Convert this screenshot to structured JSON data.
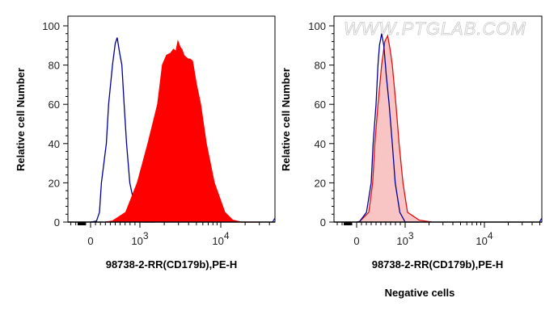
{
  "watermark": "WWW.PTGLAB.COM",
  "chart_data": [
    {
      "type": "area",
      "xscale": "biexponential",
      "xlabel": "98738-2-RR(CD179b),PE-H",
      "ylabel": "Relative cell Number",
      "subtitle": "",
      "ylim": [
        0,
        100
      ],
      "yticks": [
        "0",
        "20",
        "40",
        "60",
        "80",
        "100"
      ],
      "xticks": [
        {
          "value": 0,
          "label": "0"
        },
        {
          "value": 1000,
          "label": "10",
          "exp": "3"
        },
        {
          "value": 10000,
          "label": "10",
          "exp": "4"
        }
      ],
      "series": [
        {
          "color": "#000099",
          "fill": "none",
          "points": [
            [
              0,
              0
            ],
            [
              120,
              0.5
            ],
            [
              180,
              5
            ],
            [
              220,
              20
            ],
            [
              320,
              40
            ],
            [
              365,
              60
            ],
            [
              445,
              80
            ],
            [
              500,
              91
            ],
            [
              540,
              94
            ],
            [
              590,
              86
            ],
            [
              635,
              80
            ],
            [
              680,
              60
            ],
            [
              730,
              40
            ],
            [
              795,
              20
            ],
            [
              920,
              5
            ],
            [
              1000,
              1.5
            ],
            [
              1120,
              0
            ],
            [
              1500,
              0
            ]
          ]
        },
        {
          "color": "#ff0000",
          "fill": "#ff0000",
          "points": [
            [
              300,
              0
            ],
            [
              445,
              0.5
            ],
            [
              715,
              5
            ],
            [
              950,
              20
            ],
            [
              1260,
              40
            ],
            [
              1660,
              60
            ],
            [
              1900,
              80
            ],
            [
              2140,
              85
            ],
            [
              2400,
              86
            ],
            [
              2600,
              88
            ],
            [
              2800,
              87
            ],
            [
              2950,
              92
            ],
            [
              3150,
              89
            ],
            [
              3300,
              88
            ],
            [
              3500,
              85
            ],
            [
              3700,
              84
            ],
            [
              3950,
              83
            ],
            [
              4200,
              83
            ],
            [
              4470,
              82
            ],
            [
              5000,
              70
            ],
            [
              5620,
              60
            ],
            [
              6600,
              40
            ],
            [
              8300,
              20
            ],
            [
              11200,
              5
            ],
            [
              14000,
              1
            ],
            [
              17800,
              0
            ],
            [
              30000,
              0
            ]
          ]
        }
      ]
    },
    {
      "type": "area",
      "xscale": "biexponential",
      "xlabel": "98738-2-RR(CD179b),PE-H",
      "ylabel": "Relative cell Number",
      "subtitle": "Negative cells",
      "ylim": [
        0,
        100
      ],
      "yticks": [
        "0",
        "20",
        "40",
        "60",
        "80",
        "100"
      ],
      "xticks": [
        {
          "value": 0,
          "label": "0"
        },
        {
          "value": 1000,
          "label": "10",
          "exp": "3"
        },
        {
          "value": 10000,
          "label": "10",
          "exp": "4"
        }
      ],
      "series": [
        {
          "color": "#e01010",
          "fill": "#f9c4c4",
          "points": [
            [
              0,
              0
            ],
            [
              62,
              0.3
            ],
            [
              250,
              5
            ],
            [
              330,
              20
            ],
            [
              375,
              40
            ],
            [
              440,
              60
            ],
            [
              515,
              80
            ],
            [
              580,
              92
            ],
            [
              640,
              95
            ],
            [
              690,
              88
            ],
            [
              735,
              80
            ],
            [
              810,
              60
            ],
            [
              875,
              40
            ],
            [
              955,
              20
            ],
            [
              1070,
              5
            ],
            [
              1500,
              1
            ],
            [
              2180,
              0
            ]
          ]
        },
        {
          "color": "#000099",
          "fill": "none",
          "points": [
            [
              0,
              0
            ],
            [
              62,
              0.3
            ],
            [
              203,
              5
            ],
            [
              300,
              20
            ],
            [
              340,
              40
            ],
            [
              400,
              60
            ],
            [
              440,
              80
            ],
            [
              470,
              90
            ],
            [
              515,
              96
            ],
            [
              560,
              90
            ],
            [
              610,
              75
            ],
            [
              670,
              60
            ],
            [
              735,
              40
            ],
            [
              795,
              20
            ],
            [
              890,
              5
            ],
            [
              1000,
              0
            ],
            [
              1500,
              0
            ]
          ]
        }
      ]
    }
  ]
}
